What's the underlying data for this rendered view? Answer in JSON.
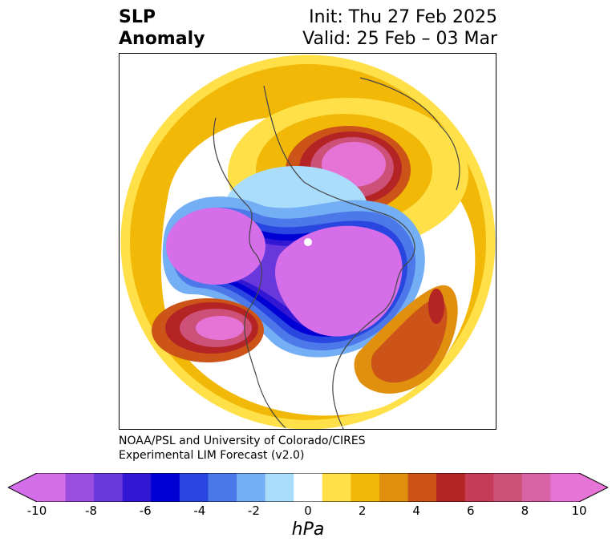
{
  "header": {
    "title_line1": "SLP",
    "title_line2": "Anomaly",
    "init_line": "Init: Thu 27 Feb 2025",
    "valid_line": "Valid: 25 Feb – 03 Mar"
  },
  "credit": {
    "line1": "NOAA/PSL and University of Colorado/CIRES",
    "line2": "Experimental LIM Forecast (v2.0)"
  },
  "colorbar": {
    "unit": "hPa",
    "tick_labels": [
      "-10",
      "-8",
      "-6",
      "-4",
      "-2",
      "0",
      "2",
      "4",
      "6",
      "8",
      "10"
    ],
    "levels": [
      -10,
      -9,
      -8,
      -7,
      -6,
      -5,
      -4,
      -3,
      -2,
      -1,
      1,
      2,
      3,
      4,
      5,
      6,
      7,
      8,
      9,
      10
    ],
    "colors": [
      "#d56ee8",
      "#9c4ee0",
      "#6838dc",
      "#3218d4",
      "#0000d4",
      "#2a46e0",
      "#4c78ea",
      "#74aef4",
      "#aadcfc",
      "#ffffff",
      "#ffe048",
      "#f2b808",
      "#e0900e",
      "#cc5418",
      "#b42424",
      "#c43c58",
      "#cc5078",
      "#d864a6",
      "#e674d6"
    ],
    "extend": "both"
  },
  "map": {
    "projection": "north polar stereographic",
    "features": [
      {
        "name": "negative anomaly over north Pacific / Alaska",
        "min_hPa": -10
      },
      {
        "name": "negative anomaly over Canada / Hudson Bay",
        "min_hPa": -10
      },
      {
        "name": "positive anomaly over Siberia",
        "max_hPa": 10
      },
      {
        "name": "positive anomaly off US west coast",
        "max_hPa": 10
      },
      {
        "name": "positive anomaly over central Atlantic",
        "max_hPa": 6
      }
    ]
  }
}
